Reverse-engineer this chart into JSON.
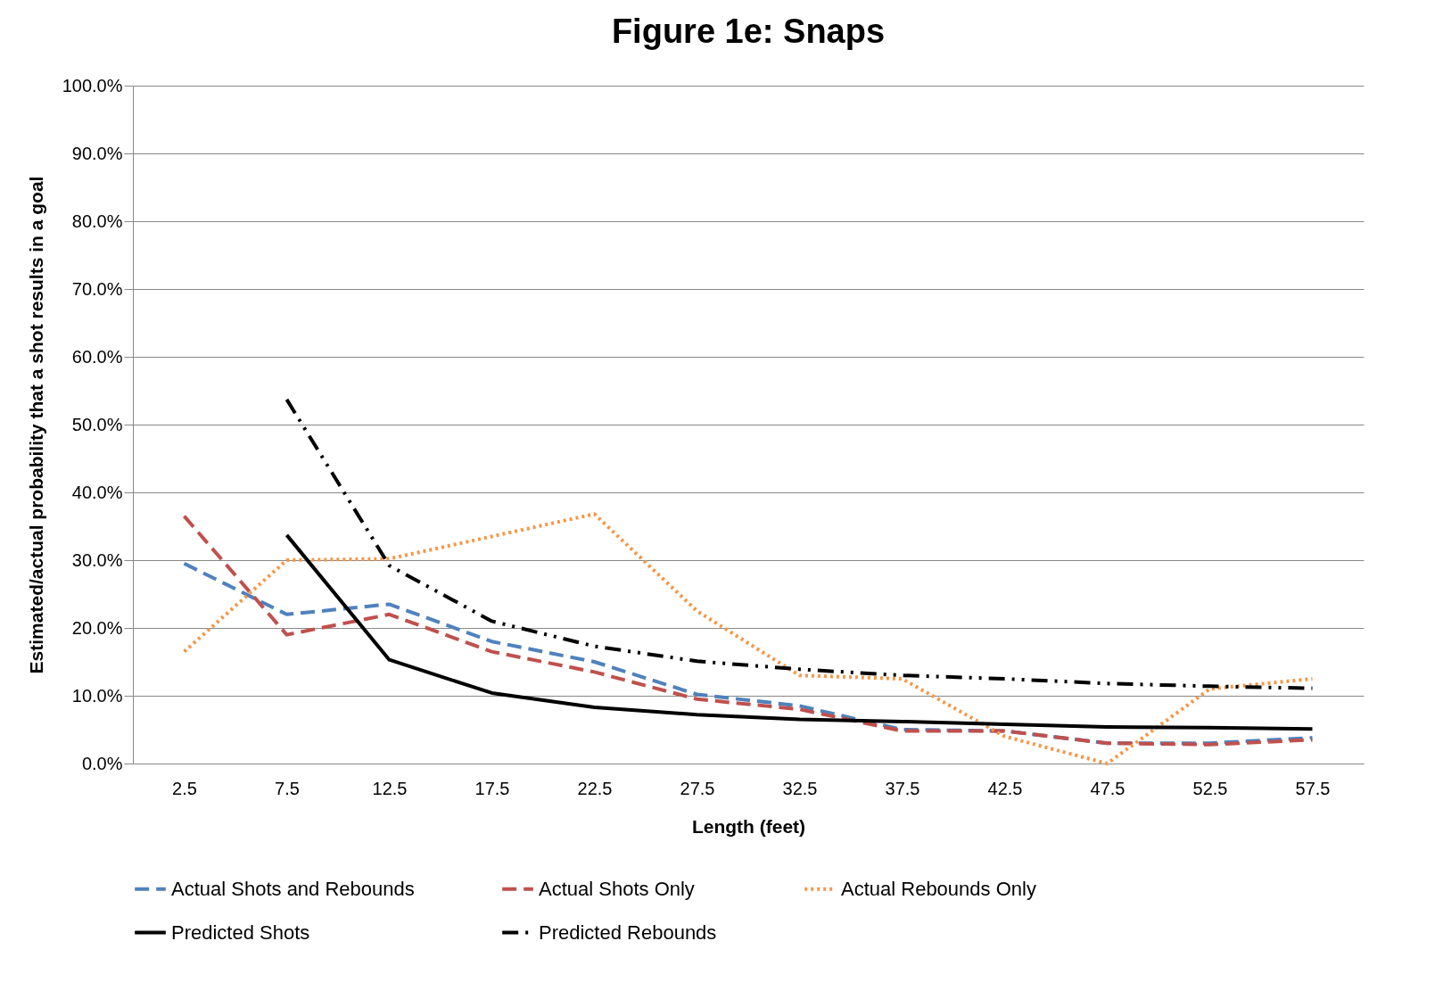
{
  "chart_data": {
    "type": "line",
    "title": "Figure 1e: Snaps",
    "xlabel": "Length (feet)",
    "ylabel": "Estimated/actual probability that a shot results in a goal",
    "categories": [
      "2.5",
      "7.5",
      "12.5",
      "17.5",
      "22.5",
      "27.5",
      "32.5",
      "37.5",
      "42.5",
      "47.5",
      "52.5",
      "57.5"
    ],
    "series": [
      {
        "name": "Actual Shots and Rebounds",
        "color": "#4f81bd",
        "line_style": "dashed",
        "values": [
          29.5,
          22,
          23.5,
          18,
          15,
          10.2,
          8.5,
          5,
          4.8,
          3,
          3,
          3.8
        ]
      },
      {
        "name": "Actual Shots Only",
        "color": "#c0504d",
        "line_style": "dashed",
        "values": [
          36.5,
          19,
          22,
          16.5,
          13.5,
          9.5,
          8,
          4.8,
          4.8,
          3,
          2.8,
          3.5
        ]
      },
      {
        "name": "Actual Rebounds Only",
        "color": "#f79646",
        "line_style": "dotted",
        "values": [
          16.5,
          30,
          30.2,
          33.5,
          36.8,
          22.5,
          13,
          12.5,
          4,
          0,
          11,
          12.5
        ]
      },
      {
        "name": "Predicted Shots",
        "color": "#000000",
        "line_style": "solid",
        "values": [
          null,
          33.7,
          15.3,
          10.4,
          8.3,
          7.2,
          6.5,
          6.2,
          5.8,
          5.4,
          5.3,
          5.1
        ]
      },
      {
        "name": "Predicted Rebounds",
        "color": "#000000",
        "line_style": "dashdot",
        "values": [
          null,
          53.7,
          29.2,
          21,
          17.3,
          15.1,
          13.9,
          13,
          12.5,
          11.8,
          11.4,
          11.1
        ]
      }
    ],
    "ylim": [
      0,
      100
    ],
    "yticks": [
      {
        "value": 0,
        "label": "0.0%"
      },
      {
        "value": 10,
        "label": "10.0%"
      },
      {
        "value": 20,
        "label": "20.0%"
      },
      {
        "value": 30,
        "label": "30.0%"
      },
      {
        "value": 40,
        "label": "40.0%"
      },
      {
        "value": 50,
        "label": "50.0%"
      },
      {
        "value": 60,
        "label": "60.0%"
      },
      {
        "value": 70,
        "label": "70.0%"
      },
      {
        "value": 80,
        "label": "80.0%"
      },
      {
        "value": 90,
        "label": "90.0%"
      },
      {
        "value": 100,
        "label": "100.0%"
      }
    ],
    "grid": "y",
    "legend": "bottom",
    "marker": "none"
  }
}
